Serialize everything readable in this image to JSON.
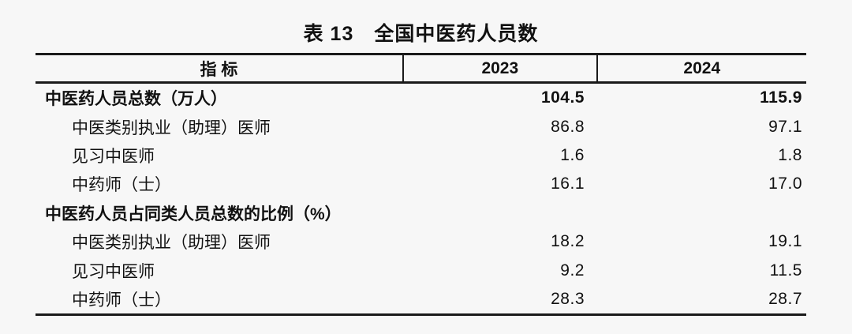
{
  "title": "表 13　全国中医药人员数",
  "table": {
    "columns": [
      "指  标",
      "2023",
      "2024"
    ],
    "rows": [
      {
        "label": "中医药人员总数（万人）",
        "v2023": "104.5",
        "v2024": "115.9",
        "bold": true,
        "indent": false
      },
      {
        "label": "中医类别执业（助理）医师",
        "v2023": "86.8",
        "v2024": "97.1",
        "bold": false,
        "indent": true
      },
      {
        "label": "见习中医师",
        "v2023": "1.6",
        "v2024": "1.8",
        "bold": false,
        "indent": true
      },
      {
        "label": "中药师（士）",
        "v2023": "16.1",
        "v2024": "17.0",
        "bold": false,
        "indent": true
      },
      {
        "label": "中医药人员占同类人员总数的比例（%）",
        "v2023": "",
        "v2024": "",
        "bold": true,
        "indent": false
      },
      {
        "label": "中医类别执业（助理）医师",
        "v2023": "18.2",
        "v2024": "19.1",
        "bold": false,
        "indent": true
      },
      {
        "label": "见习中医师",
        "v2023": "9.2",
        "v2024": "11.5",
        "bold": false,
        "indent": true
      },
      {
        "label": "中药师（士）",
        "v2023": "28.3",
        "v2024": "28.7",
        "bold": false,
        "indent": true
      }
    ]
  },
  "colors": {
    "background": "#f7f7f7",
    "text": "#111111",
    "border": "#1a1a1a"
  }
}
